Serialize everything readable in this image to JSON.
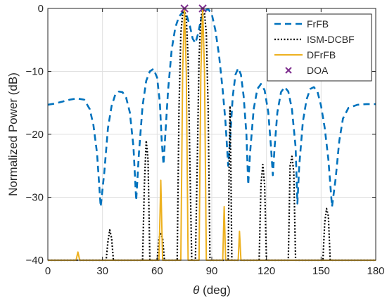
{
  "chart_data": {
    "type": "line",
    "title": "",
    "xlabel": "θ (deg)",
    "ylabel": "Normalized Power (dB)",
    "xlim": [
      0,
      180
    ],
    "ylim": [
      -40,
      0
    ],
    "x_ticks": [
      0,
      30,
      60,
      90,
      120,
      150,
      180
    ],
    "y_ticks": [
      0,
      -10,
      -20,
      -30,
      -40
    ],
    "grid": true,
    "legend_position": "top-right",
    "series": [
      {
        "name": "FrFB",
        "style": "dashed",
        "color": "#0072BD",
        "points": [
          [
            0,
            -15.3
          ],
          [
            4,
            -15.1
          ],
          [
            8,
            -14.8
          ],
          [
            12,
            -14.5
          ],
          [
            16,
            -14.3
          ],
          [
            20,
            -14.5
          ],
          [
            23,
            -16
          ],
          [
            25,
            -18.5
          ],
          [
            27,
            -23
          ],
          [
            29,
            -31.5
          ],
          [
            31,
            -26
          ],
          [
            33,
            -19
          ],
          [
            35,
            -15.5
          ],
          [
            37,
            -13.7
          ],
          [
            39,
            -13.2
          ],
          [
            41,
            -13.3
          ],
          [
            43,
            -14.2
          ],
          [
            45,
            -16.5
          ],
          [
            47,
            -22
          ],
          [
            48.5,
            -30.5
          ],
          [
            50,
            -23
          ],
          [
            52,
            -15.5
          ],
          [
            54,
            -11.5
          ],
          [
            56,
            -10
          ],
          [
            58,
            -9.6
          ],
          [
            60,
            -11
          ],
          [
            61.5,
            -15
          ],
          [
            62.5,
            -21
          ],
          [
            63.5,
            -24.8
          ],
          [
            64.5,
            -20
          ],
          [
            66,
            -13
          ],
          [
            68,
            -6.5
          ],
          [
            70,
            -3
          ],
          [
            72,
            -1.3
          ],
          [
            74,
            -0.6
          ],
          [
            76,
            -0.9
          ],
          [
            78,
            -2.8
          ],
          [
            79.5,
            -4.8
          ],
          [
            81,
            -5.5
          ],
          [
            82.5,
            -4
          ],
          [
            84,
            -1.8
          ],
          [
            86,
            -0.4
          ],
          [
            88,
            -0.1
          ],
          [
            90,
            -0.9
          ],
          [
            92,
            -3.5
          ],
          [
            94,
            -7.5
          ],
          [
            96,
            -13
          ],
          [
            97.5,
            -18
          ],
          [
            99,
            -25
          ],
          [
            100,
            -21
          ],
          [
            101.5,
            -14
          ],
          [
            103,
            -10.5
          ],
          [
            104.5,
            -9.5
          ],
          [
            106,
            -10.5
          ],
          [
            107.5,
            -14
          ],
          [
            109,
            -20
          ],
          [
            110,
            -28
          ],
          [
            111,
            -23
          ],
          [
            113,
            -16
          ],
          [
            115,
            -12.8
          ],
          [
            117,
            -12
          ],
          [
            119,
            -13
          ],
          [
            121,
            -16.5
          ],
          [
            122.5,
            -22
          ],
          [
            123.5,
            -26.5
          ],
          [
            124.5,
            -22
          ],
          [
            126,
            -16.5
          ],
          [
            128,
            -13.3
          ],
          [
            130,
            -12.5
          ],
          [
            132,
            -13.2
          ],
          [
            134,
            -16
          ],
          [
            136,
            -22
          ],
          [
            137,
            -31
          ],
          [
            138,
            -25
          ],
          [
            140,
            -18
          ],
          [
            142,
            -14.5
          ],
          [
            144,
            -12.8
          ],
          [
            146,
            -12.5
          ],
          [
            148,
            -13.2
          ],
          [
            150,
            -15.5
          ],
          [
            152,
            -19
          ],
          [
            154,
            -24
          ],
          [
            156,
            -31.5
          ],
          [
            158,
            -27
          ],
          [
            160,
            -21
          ],
          [
            162,
            -17.5
          ],
          [
            165,
            -15.8
          ],
          [
            170,
            -15.3
          ],
          [
            175,
            -15.2
          ],
          [
            180,
            -15.2
          ]
        ]
      },
      {
        "name": "ISM-DCBF",
        "style": "dotted",
        "color": "#000000",
        "points": [
          [
            0,
            -40
          ],
          [
            32,
            -40
          ],
          [
            33,
            -37
          ],
          [
            34,
            -35.2
          ],
          [
            35,
            -36.5
          ],
          [
            36,
            -40
          ],
          [
            52,
            -40
          ],
          [
            53,
            -28
          ],
          [
            54,
            -21
          ],
          [
            55,
            -24
          ],
          [
            56,
            -40
          ],
          [
            60,
            -40
          ],
          [
            61,
            -36.5
          ],
          [
            62,
            -35.8
          ],
          [
            63,
            -36.5
          ],
          [
            64,
            -40
          ],
          [
            71,
            -40
          ],
          [
            72,
            -16
          ],
          [
            73,
            -4
          ],
          [
            74,
            -0.8
          ],
          [
            75,
            -0.2
          ],
          [
            76,
            -1.5
          ],
          [
            77,
            -8
          ],
          [
            78,
            -25
          ],
          [
            79,
            -40
          ],
          [
            81,
            -40
          ],
          [
            82,
            -25
          ],
          [
            83,
            -8
          ],
          [
            84,
            -1.5
          ],
          [
            85,
            -0.2
          ],
          [
            86,
            -0.8
          ],
          [
            87,
            -4
          ],
          [
            88,
            -16
          ],
          [
            89,
            -40
          ],
          [
            99,
            -40
          ],
          [
            99.5,
            -26
          ],
          [
            100,
            -15.5
          ],
          [
            100.5,
            -26
          ],
          [
            101,
            -40
          ],
          [
            116,
            -40
          ],
          [
            117,
            -28
          ],
          [
            118,
            -24.8
          ],
          [
            119,
            -28
          ],
          [
            120,
            -40
          ],
          [
            132,
            -40
          ],
          [
            133,
            -25
          ],
          [
            134,
            -23.5
          ],
          [
            135,
            -26
          ],
          [
            136,
            -40
          ],
          [
            151,
            -40
          ],
          [
            152,
            -34
          ],
          [
            153,
            -31.8
          ],
          [
            154,
            -33
          ],
          [
            155,
            -40
          ],
          [
            180,
            -40
          ]
        ]
      },
      {
        "name": "DFrFB",
        "style": "solid",
        "color": "#EDB120",
        "points": [
          [
            0,
            -40
          ],
          [
            15.5,
            -40
          ],
          [
            16.5,
            -38.7
          ],
          [
            17.5,
            -40
          ],
          [
            61,
            -40
          ],
          [
            62,
            -27.3
          ],
          [
            63,
            -40
          ],
          [
            73,
            -40
          ],
          [
            74,
            -10
          ],
          [
            75,
            0
          ],
          [
            76,
            -10
          ],
          [
            77,
            -40
          ],
          [
            83,
            -40
          ],
          [
            84,
            -10
          ],
          [
            85,
            0
          ],
          [
            86,
            -10
          ],
          [
            87,
            -40
          ],
          [
            96,
            -40
          ],
          [
            96.8,
            -31.5
          ],
          [
            97.6,
            -40
          ],
          [
            104.5,
            -40
          ],
          [
            105.2,
            -35.4
          ],
          [
            106,
            -40
          ],
          [
            180,
            -40
          ]
        ]
      },
      {
        "name": "DOA",
        "style": "marker-x",
        "color": "#7E2F8E",
        "points": [
          [
            75,
            0
          ],
          [
            85,
            0
          ]
        ]
      }
    ]
  }
}
